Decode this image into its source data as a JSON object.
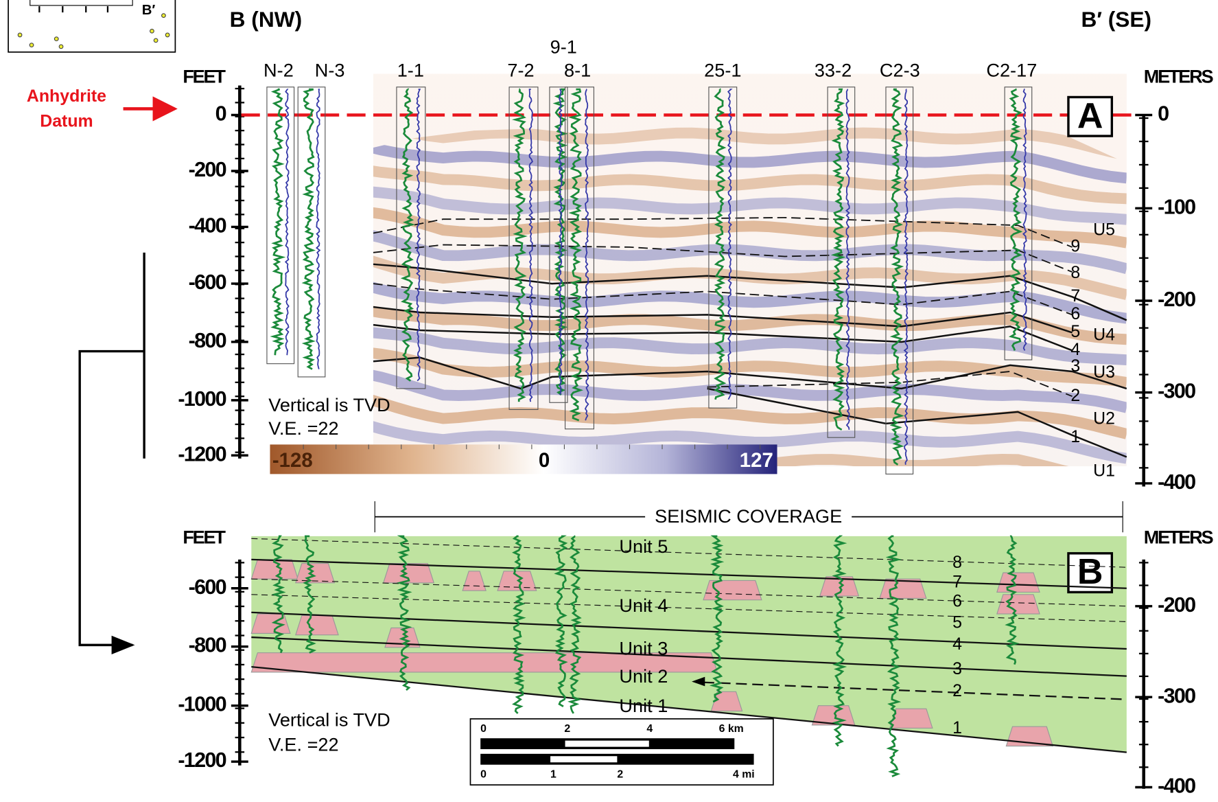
{
  "inset": {
    "label": "B′"
  },
  "header": {
    "left": "B (NW)",
    "right": "B′ (SE)"
  },
  "datum": {
    "lines": [
      "Anhydrite",
      "Datum"
    ]
  },
  "wells": [
    "N-2",
    "N-3",
    "1-1",
    "7-2",
    "9-1",
    "8-1",
    "25-1",
    "33-2",
    "C2-3",
    "C2-17"
  ],
  "panel_a": {
    "label": "A",
    "feet_title": "FEET",
    "feet_ticks": [
      "0",
      "-200",
      "-400",
      "-600",
      "-800",
      "-1000",
      "-1200"
    ],
    "meters_title": "METERS",
    "meters_ticks": [
      "0",
      "-100",
      "-200",
      "-300",
      "-400"
    ],
    "horizons": [
      "9",
      "8",
      "7",
      "6",
      "5",
      "4",
      "3",
      "2",
      "1"
    ],
    "units": [
      "U5",
      "U4",
      "U3",
      "U2",
      "U1"
    ],
    "notes": [
      "Vertical is TVD",
      "V.E. =22"
    ],
    "colorbar": [
      "-128",
      "0",
      "127"
    ]
  },
  "coverage": "SEISMIC COVERAGE",
  "panel_b": {
    "label": "B",
    "feet_title": "FEET",
    "feet_ticks": [
      "-600",
      "-800",
      "-1000",
      "-1200"
    ],
    "meters_title": "METERS",
    "meters_ticks": [
      "-200",
      "-300",
      "-400"
    ],
    "units": [
      "Unit 5",
      "Unit 4",
      "Unit 3",
      "Unit 2",
      "Unit 1"
    ],
    "horizons": [
      "8",
      "7",
      "6",
      "5",
      "4",
      "3",
      "2",
      "1"
    ],
    "notes": [
      "Vertical is TVD",
      "V.E. =22"
    ],
    "scale_km": [
      "0",
      "2",
      "4",
      "6 km"
    ],
    "scale_mi": [
      "0",
      "1",
      "2",
      "4 mi"
    ]
  }
}
